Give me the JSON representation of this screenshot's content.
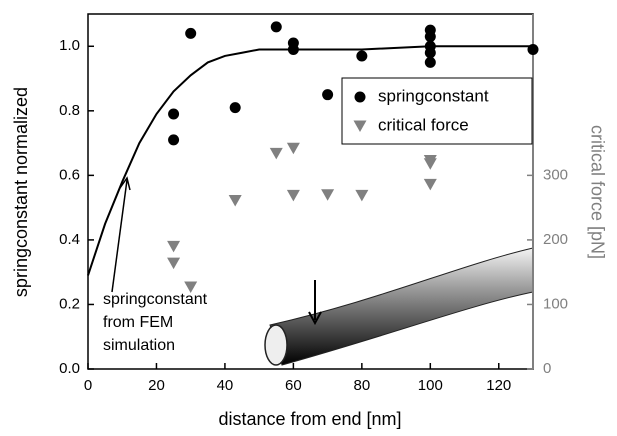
{
  "chart_data": {
    "type": "scatter",
    "xlabel": "distance from end [nm]",
    "ylabel": "springconstant normalized",
    "y2label": "critical force [pN]",
    "xlim": [
      0,
      130
    ],
    "xticks": [
      0,
      20,
      40,
      60,
      80,
      100,
      120
    ],
    "ylim": [
      0,
      1.1
    ],
    "yticks": [
      {
        "value": 0,
        "label": "0.0"
      },
      0.2,
      0.4,
      0.6,
      0.8,
      {
        "value": 1,
        "label": "1.0"
      }
    ],
    "y2lim": [
      0,
      550
    ],
    "y2ticks": [
      0,
      100,
      200,
      300
    ],
    "legend": "upper right",
    "series": [
      {
        "style": "line",
        "color": "#000000",
        "x": [
          0,
          5,
          10,
          15,
          20,
          25,
          30,
          35,
          40,
          45,
          50,
          55,
          60,
          80,
          100,
          130
        ],
        "values": [
          0.29,
          0.45,
          0.58,
          0.7,
          0.79,
          0.86,
          0.91,
          0.95,
          0.97,
          0.98,
          0.99,
          0.99,
          0.99,
          0.99,
          1.0,
          1.0
        ]
      },
      {
        "name": "springconstant",
        "style": "circle",
        "color": "#000000",
        "x": [
          25,
          25,
          30,
          43,
          55,
          60,
          60,
          70,
          80,
          100,
          100,
          100,
          100,
          100,
          130
        ],
        "values": [
          0.79,
          0.71,
          1.04,
          0.81,
          1.06,
          1.01,
          0.99,
          0.85,
          0.97,
          1.05,
          1.03,
          1.0,
          0.98,
          0.95,
          0.99
        ]
      },
      {
        "name": "critical force",
        "style": "triangle",
        "color": "#808080",
        "axis": "y2",
        "x": [
          25,
          25,
          30,
          43,
          55,
          60,
          60,
          70,
          80,
          100,
          100,
          100
        ],
        "values": [
          190,
          164,
          127,
          261,
          334,
          342,
          269,
          270,
          269,
          323,
          318,
          286
        ]
      }
    ],
    "annotation": [
      "springconstant",
      "from FEM",
      "simulation"
    ]
  }
}
